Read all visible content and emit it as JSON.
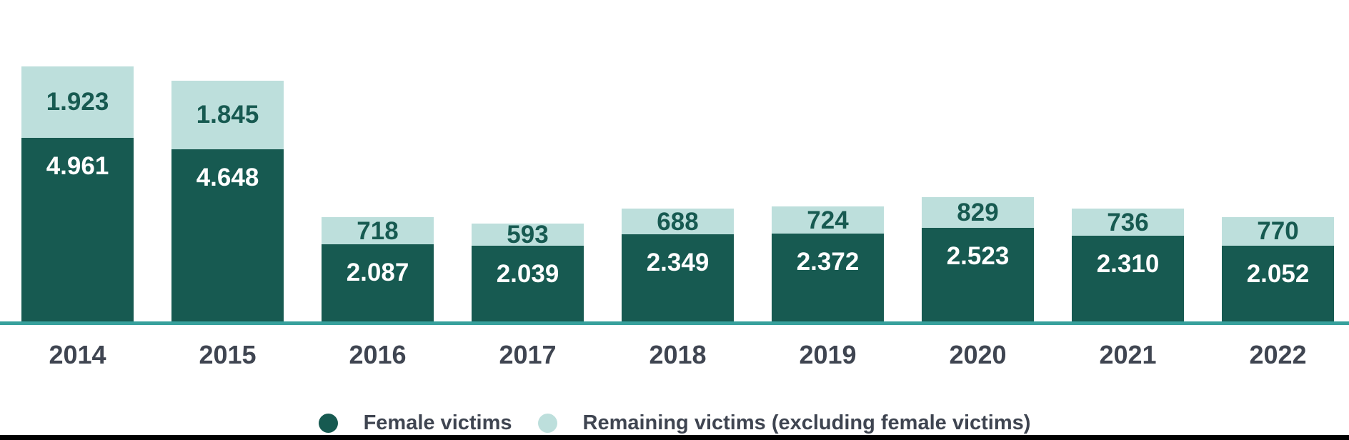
{
  "chart_data": {
    "type": "bar",
    "stacked": true,
    "title": "",
    "xlabel": "",
    "ylabel": "",
    "grid": false,
    "legend_position": "bottom",
    "ylim": [
      0,
      6884
    ],
    "categories": [
      "2014",
      "2015",
      "2016",
      "2017",
      "2018",
      "2019",
      "2020",
      "2021",
      "2022"
    ],
    "series": [
      {
        "name": "Female victims",
        "color": "#175A51",
        "values": [
          4961,
          4648,
          2087,
          2039,
          2349,
          2372,
          2523,
          2310,
          2052
        ],
        "labels": [
          "4.961",
          "4.648",
          "2.087",
          "2.039",
          "2.349",
          "2.372",
          "2.523",
          "2.310",
          "2.052"
        ],
        "label_color": "#ffffff"
      },
      {
        "name": "Remaining victims (excluding female victims)",
        "color": "#BDDFDC",
        "values": [
          1923,
          1845,
          718,
          593,
          688,
          724,
          829,
          736,
          770
        ],
        "labels": [
          "1.923",
          "1.845",
          "718",
          "593",
          "688",
          "724",
          "829",
          "736",
          "770"
        ],
        "label_color": "#175A51"
      }
    ],
    "axis_line_color": "#37A09C",
    "tick_label_color": "#3F4551"
  },
  "legend": {
    "items": [
      {
        "label": "Female victims",
        "color": "#175A51"
      },
      {
        "label": "Remaining victims (excluding female victims)",
        "color": "#BDDFDC"
      }
    ],
    "text_color": "#3F4551"
  }
}
